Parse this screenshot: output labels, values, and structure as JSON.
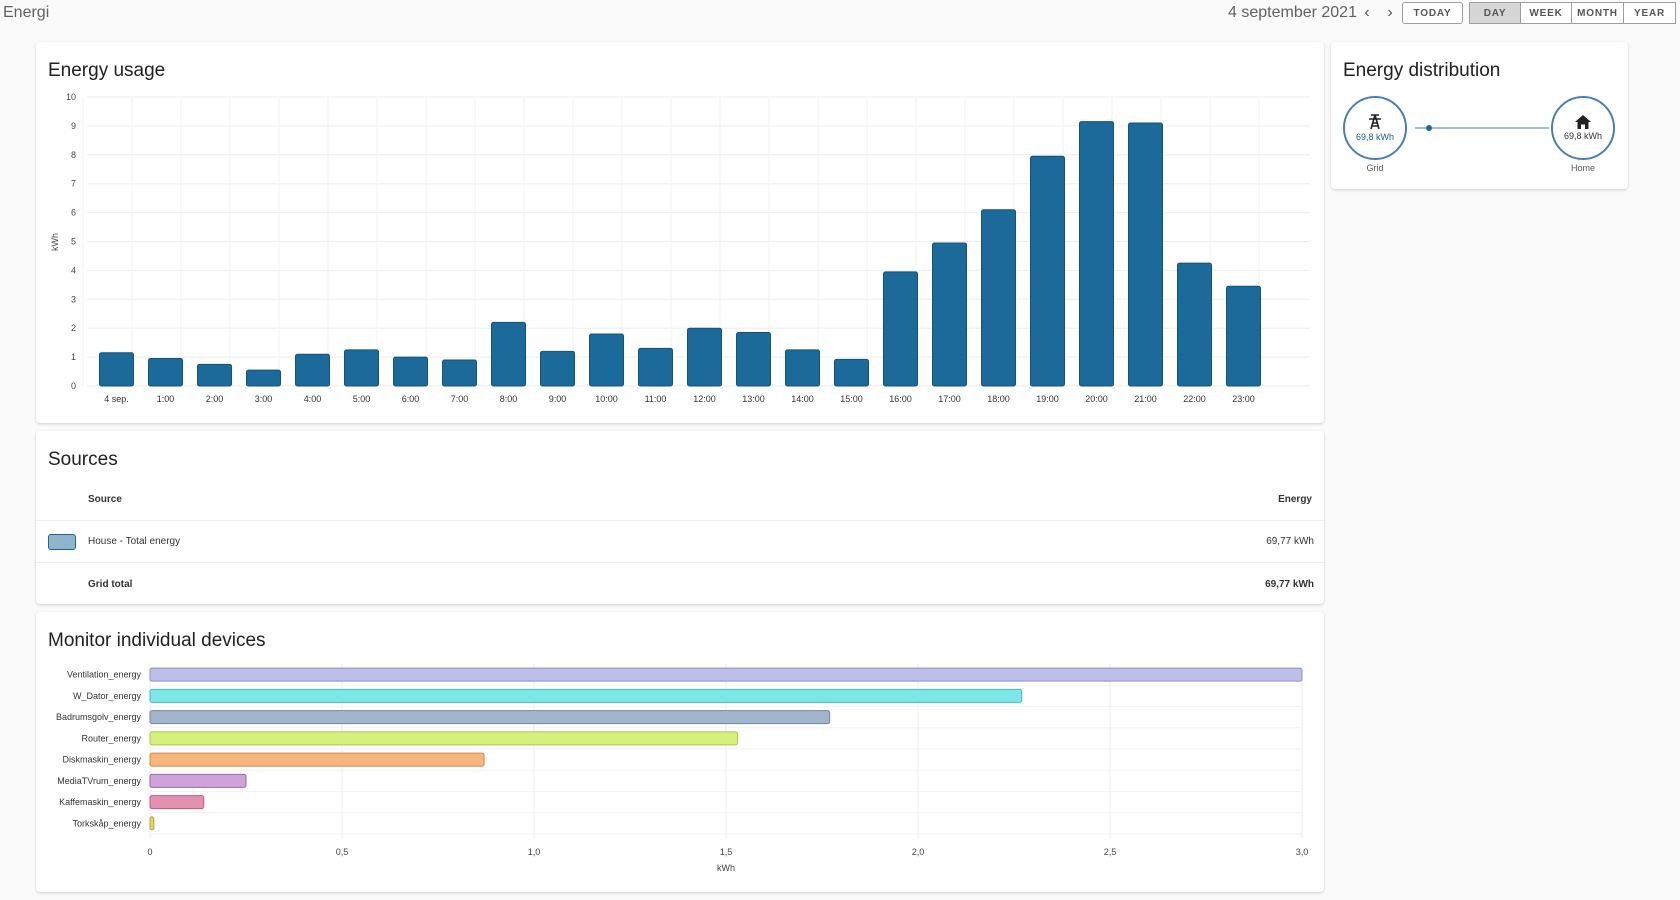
{
  "app": {
    "title": "Energi"
  },
  "header": {
    "date": "4 september 2021",
    "today_label": "TODAY",
    "periods": [
      {
        "label": "DAY",
        "selected": true
      },
      {
        "label": "WEEK",
        "selected": false
      },
      {
        "label": "MONTH",
        "selected": false
      },
      {
        "label": "YEAR",
        "selected": false
      }
    ]
  },
  "usage_card": {
    "title": "Energy usage"
  },
  "distribution_card": {
    "title": "Energy distribution",
    "grid": {
      "value": "69,8 kWh",
      "label": "Grid"
    },
    "home": {
      "value": "69,8 kWh",
      "label": "Home"
    }
  },
  "sources_card": {
    "title": "Sources",
    "col_source": "Source",
    "col_energy": "Energy",
    "rows": [
      {
        "name": "House - Total energy",
        "energy": "69,77 kWh",
        "color": "#8fb4cc"
      }
    ],
    "total": {
      "name": "Grid total",
      "energy": "69,77 kWh"
    }
  },
  "devices_card": {
    "title": "Monitor individual devices"
  },
  "colors": {
    "bar": "#1c6a9a",
    "bar_border": "#12537c",
    "accent": "#4a7fae"
  },
  "chart_data": [
    {
      "type": "bar",
      "ylabel": "kWh",
      "ylim": [
        0,
        10
      ],
      "yticks": [
        "0",
        "1",
        "2",
        "3",
        "4",
        "5",
        "6",
        "7",
        "8",
        "9",
        "10"
      ],
      "categories": [
        "4 sep.",
        "1:00",
        "2:00",
        "3:00",
        "4:00",
        "5:00",
        "6:00",
        "7:00",
        "8:00",
        "9:00",
        "10:00",
        "11:00",
        "12:00",
        "13:00",
        "14:00",
        "15:00",
        "16:00",
        "17:00",
        "18:00",
        "19:00",
        "20:00",
        "21:00",
        "22:00",
        "23:00"
      ],
      "values": [
        1.15,
        0.95,
        0.75,
        0.55,
        1.1,
        1.25,
        1.0,
        0.9,
        2.2,
        1.2,
        1.8,
        1.3,
        2.0,
        1.85,
        1.25,
        0.92,
        3.95,
        4.95,
        6.1,
        7.95,
        9.15,
        9.1,
        4.25,
        3.45
      ],
      "grid": true
    },
    {
      "type": "bar",
      "orientation": "horizontal",
      "xlabel": "kWh",
      "xlim": [
        0,
        3.0
      ],
      "xticks": [
        "0",
        "0,5",
        "1,0",
        "1,5",
        "2,0",
        "2,5",
        "3,0"
      ],
      "categories": [
        "Ventilation_energy",
        "W_Dator_energy",
        "Badrumsgolv_energy",
        "Router_energy",
        "Diskmaskin_energy",
        "MediaTVrum_energy",
        "Kaffemaskin_energy",
        "Torkskåp_energy"
      ],
      "values": [
        3.0,
        2.27,
        1.77,
        1.53,
        0.87,
        0.25,
        0.14,
        0.01
      ],
      "colors": [
        "#bdbfe9",
        "#7de6e6",
        "#a3b5cd",
        "#d5f07c",
        "#f6b77f",
        "#cfa3d8",
        "#e291b0",
        "#e8d36b"
      ],
      "border_colors": [
        "#8c8fcf",
        "#3bbfc5",
        "#6f86a6",
        "#a9c944",
        "#d98440",
        "#9a64ad",
        "#c25c83",
        "#b9a03b"
      ],
      "grid": true
    }
  ]
}
